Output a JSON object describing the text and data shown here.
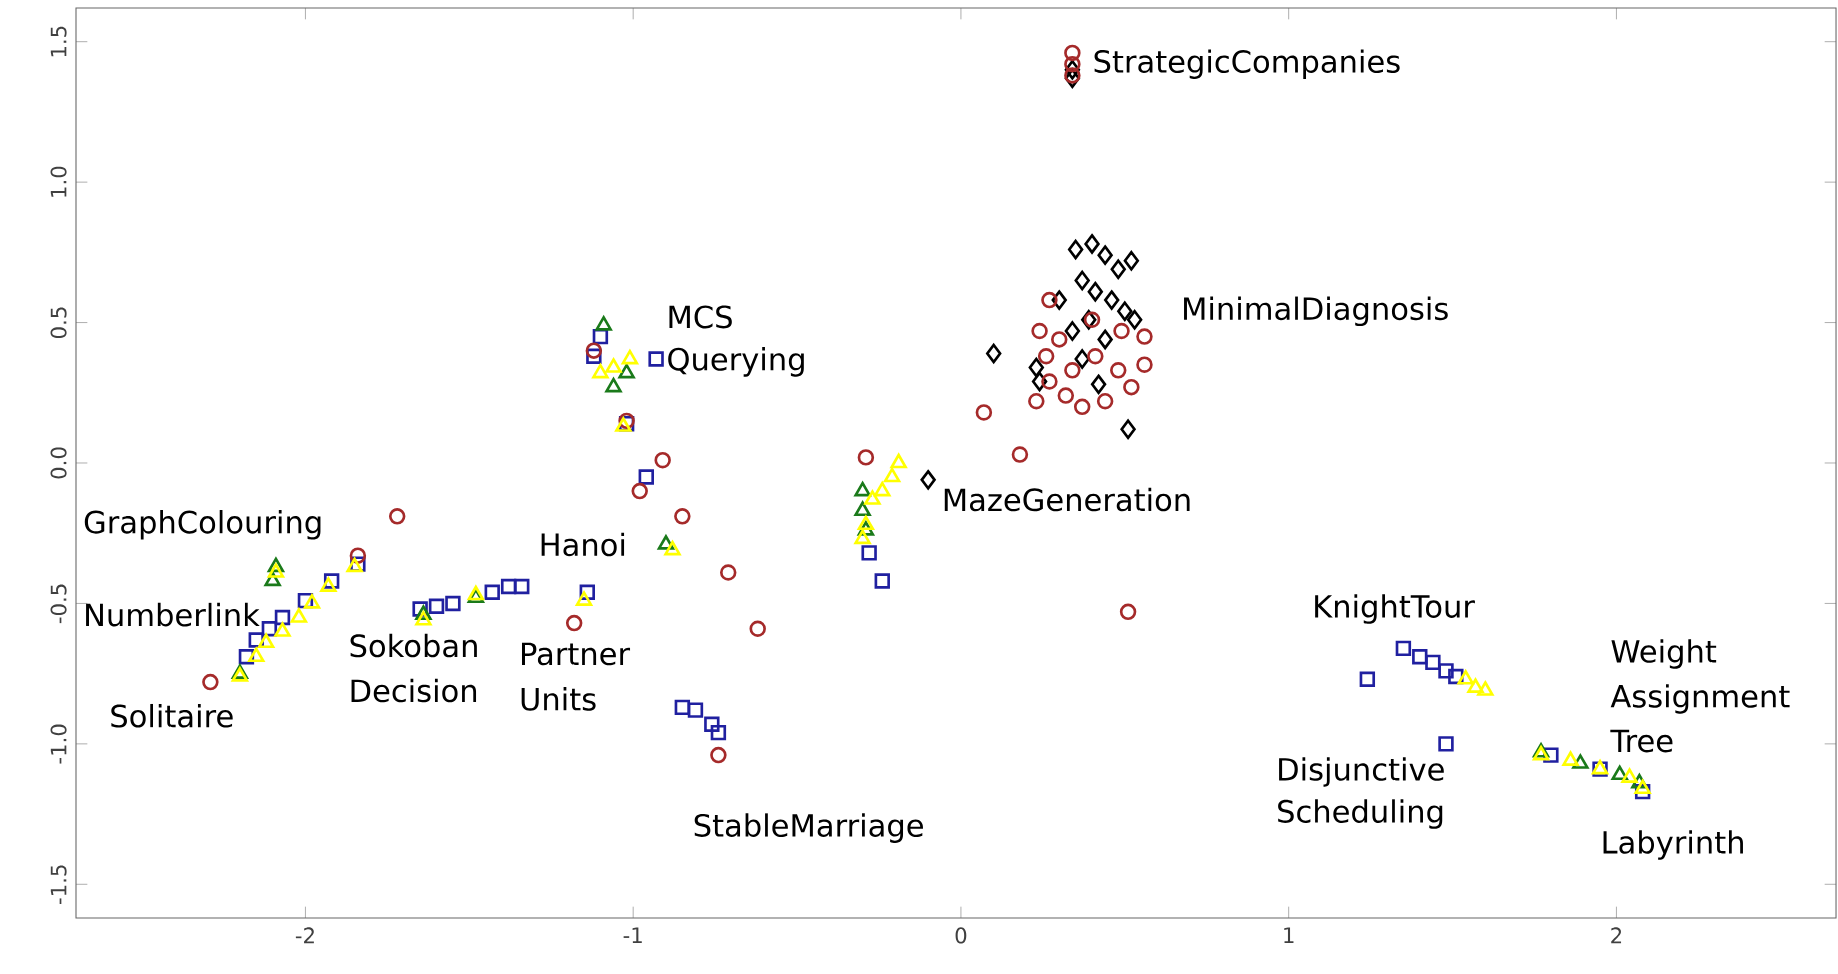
{
  "chart_data": {
    "type": "scatter",
    "xlim": [
      -2.7,
      2.67
    ],
    "ylim": [
      -1.62,
      1.62
    ],
    "xticks": [
      -2,
      -1,
      0,
      1,
      2
    ],
    "yticks": [
      -1.5,
      {
        "value": -1,
        "label": "-1.0"
      },
      -0.5,
      {
        "value": 0,
        "label": "0.0"
      },
      0.5,
      {
        "value": 1,
        "label": "1.0"
      },
      1.5
    ],
    "grid": false,
    "series": [
      {
        "color": "#2020a0",
        "marker": "square",
        "x": [
          -2.18,
          -2.15,
          -2.11,
          -2.07,
          -2.0,
          -1.92,
          -1.84,
          -1.65,
          -1.6,
          -1.55,
          -1.43,
          -1.38,
          -1.34,
          -1.14,
          -1.1,
          -1.12,
          -0.93,
          -1.02,
          -0.96,
          -0.85,
          -0.81,
          -0.76,
          -0.74,
          -0.28,
          -0.24,
          1.24,
          1.35,
          1.4,
          1.44,
          1.48,
          1.51,
          1.48,
          1.8,
          1.95,
          2.08
        ],
        "values": [
          -0.69,
          -0.63,
          -0.59,
          -0.55,
          -0.49,
          -0.42,
          -0.36,
          -0.52,
          -0.51,
          -0.5,
          -0.46,
          -0.44,
          -0.44,
          -0.46,
          0.45,
          0.38,
          0.37,
          0.14,
          -0.05,
          -0.87,
          -0.88,
          -0.93,
          -0.96,
          -0.32,
          -0.42,
          -0.77,
          -0.66,
          -0.69,
          -0.71,
          -0.74,
          -0.76,
          -1.0,
          -1.04,
          -1.09,
          -1.17
        ]
      },
      {
        "color": "#000000",
        "marker": "diamond",
        "x": [
          0.34,
          0.34,
          0.35,
          0.4,
          0.44,
          0.48,
          0.37,
          0.41,
          0.46,
          0.39,
          0.34,
          0.5,
          0.52,
          0.44,
          0.37,
          0.53,
          0.3,
          0.1,
          0.23,
          0.24,
          0.42,
          0.51,
          -0.1
        ],
        "values": [
          1.37,
          1.4,
          0.76,
          0.78,
          0.74,
          0.69,
          0.65,
          0.61,
          0.58,
          0.51,
          0.47,
          0.54,
          0.72,
          0.44,
          0.37,
          0.51,
          0.58,
          0.39,
          0.34,
          0.29,
          0.28,
          0.12,
          -0.06
        ]
      },
      {
        "color": "#1a7a1a",
        "marker": "triangle",
        "x": [
          -2.09,
          -2.1,
          -2.2,
          -1.64,
          -1.48,
          -1.15,
          -0.9,
          -1.09,
          -1.02,
          -1.06,
          -0.3,
          -0.3,
          -0.29,
          1.77,
          1.89,
          2.01,
          2.07
        ],
        "values": [
          -0.37,
          -0.42,
          -0.75,
          -0.54,
          -0.48,
          null,
          -0.29,
          0.49,
          0.32,
          0.27,
          -0.1,
          -0.17,
          -0.24,
          -1.03,
          -1.07,
          -1.11,
          -1.14
        ]
      },
      {
        "color": "#a52a2a",
        "marker": "circle",
        "x": [
          0.34,
          0.34,
          0.34,
          -2.29,
          -1.72,
          -1.84,
          -1.18,
          -0.85,
          -0.71,
          -0.62,
          -0.91,
          -0.98,
          -0.29,
          -0.74,
          -1.12,
          -1.02,
          0.07,
          0.18,
          0.51,
          0.27,
          0.24,
          0.26,
          0.27,
          0.32,
          0.37,
          0.44,
          0.52,
          0.56,
          0.56,
          0.49,
          0.41,
          0.34,
          0.4,
          0.3,
          0.23,
          0.48
        ],
        "values": [
          1.46,
          1.42,
          1.38,
          -0.78,
          -0.19,
          -0.33,
          -0.57,
          -0.19,
          -0.39,
          -0.59,
          0.01,
          -0.1,
          0.02,
          -1.04,
          0.4,
          0.15,
          0.18,
          0.03,
          -0.53,
          0.58,
          0.47,
          0.38,
          0.29,
          0.24,
          0.2,
          0.22,
          0.27,
          0.35,
          0.45,
          0.47,
          0.38,
          0.33,
          0.51,
          0.44,
          0.22,
          0.33
        ]
      },
      {
        "color": "#ffff00",
        "marker": "triangle-down",
        "x": [
          -2.2,
          -2.15,
          -2.12,
          -2.07,
          -2.02,
          -1.98,
          -1.93,
          -1.85,
          -2.09,
          -1.64,
          -1.48,
          -1.15,
          -0.88,
          -1.1,
          -1.06,
          -1.01,
          -1.03,
          -0.3,
          -0.29,
          -0.27,
          -0.24,
          -0.21,
          -0.19,
          1.54,
          1.57,
          1.6,
          1.77,
          1.86,
          1.95,
          2.04,
          2.08
        ],
        "values": [
          -0.76,
          -0.69,
          -0.64,
          -0.6,
          -0.55,
          -0.5,
          -0.44,
          -0.37,
          -0.39,
          -0.56,
          -0.47,
          -0.49,
          -0.31,
          0.32,
          0.34,
          0.37,
          0.13,
          -0.27,
          -0.22,
          -0.13,
          -0.1,
          -0.05,
          0.0,
          -0.77,
          -0.8,
          -0.81,
          -1.04,
          -1.06,
          -1.09,
          -1.12,
          -1.16
        ]
      }
    ],
    "annotations": [
      "StrategicCompanies",
      "MinimalDiagnosis",
      "MCS",
      "Querying",
      "MazeGeneration",
      "GraphColouring",
      "Numberlink",
      "Solitaire",
      "Sokoban",
      "Decision",
      "Hanoi",
      "Partner",
      "Units",
      "StableMarriage",
      "KnightTour",
      "Weight",
      "Assignment",
      "Tree",
      "Disjunctive",
      "Scheduling",
      "Labyrinth"
    ]
  }
}
